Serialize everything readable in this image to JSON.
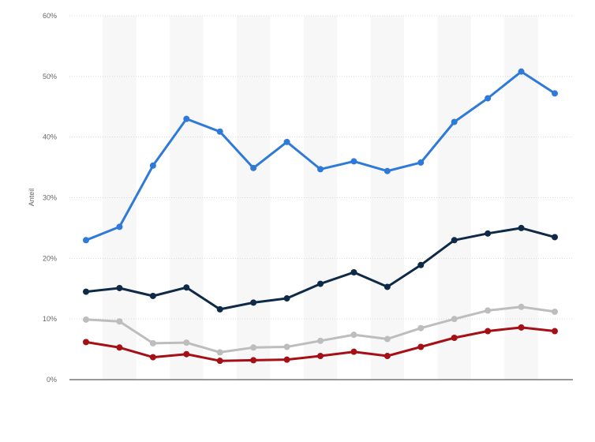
{
  "chart_data": {
    "type": "line",
    "ylabel": "Anteil",
    "ylim": [
      0,
      60
    ],
    "y_ticks": [
      0,
      10,
      20,
      30,
      40,
      50,
      60
    ],
    "y_tick_labels": [
      "0%",
      "10%",
      "20%",
      "30%",
      "40%",
      "50%",
      "60%"
    ],
    "grid": true,
    "x_count": 15,
    "series": [
      {
        "color": "#2f7ad9",
        "values": [
          23.0,
          25.2,
          35.3,
          43.0,
          40.9,
          34.9,
          39.2,
          34.7,
          36.0,
          34.4,
          35.8,
          42.5,
          46.4,
          50.8,
          47.2
        ]
      },
      {
        "color": "#0e2a47",
        "values": [
          14.5,
          15.1,
          13.8,
          15.2,
          11.6,
          12.7,
          13.4,
          15.8,
          17.7,
          15.3,
          18.9,
          23.0,
          24.1,
          25.0,
          23.5
        ]
      },
      {
        "color": "#bdbdbd",
        "values": [
          9.9,
          9.6,
          6.0,
          6.1,
          4.5,
          5.3,
          5.4,
          6.4,
          7.4,
          6.7,
          8.5,
          10.0,
          11.4,
          12.0,
          11.2
        ]
      },
      {
        "color": "#a50f15",
        "values": [
          6.2,
          5.3,
          3.7,
          4.2,
          3.1,
          3.2,
          3.3,
          3.9,
          4.6,
          3.9,
          5.4,
          6.9,
          8.0,
          8.6,
          8.0
        ]
      }
    ]
  }
}
